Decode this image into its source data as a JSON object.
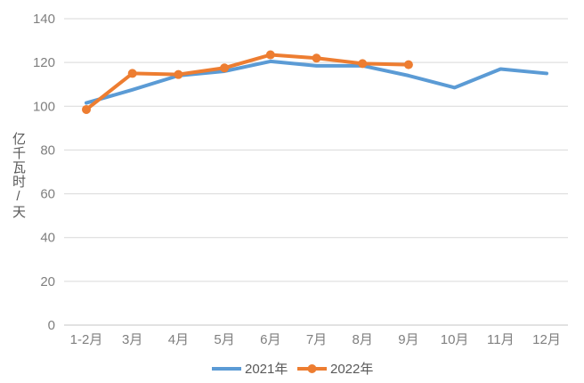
{
  "chart": {
    "background_color": "#ffffff",
    "tick_text_color": "#7f7f7f",
    "axis_title_color": "#595959",
    "legend_text_color": "#595959",
    "gridline_color": "#d9d9d9",
    "axis_line_color": "#c6c6c6"
  },
  "chart_data": {
    "type": "line",
    "title": "",
    "xlabel": "",
    "ylabel": "亿千瓦时/天",
    "categories": [
      "1-2月",
      "3月",
      "4月",
      "5月",
      "6月",
      "7月",
      "8月",
      "9月",
      "10月",
      "11月",
      "12月"
    ],
    "series": [
      {
        "name": "2021年",
        "color": "#5b9bd5",
        "marker": "none",
        "values": [
          101.5,
          107.5,
          114,
          116,
          120.5,
          118.5,
          118.5,
          114,
          108.5,
          117,
          115
        ]
      },
      {
        "name": "2022年",
        "color": "#ed7d31",
        "marker": "circle",
        "values": [
          98.5,
          115,
          114.5,
          117.5,
          123.5,
          122,
          119.5,
          119
        ]
      }
    ],
    "ylim": [
      0,
      140
    ],
    "ytick_step": 20,
    "ytick_labels": [
      "0",
      "20",
      "40",
      "60",
      "80",
      "100",
      "120",
      "140"
    ],
    "grid": "horizontal",
    "legend_position": "bottom",
    "legend_entries": [
      "2021年",
      "2022年"
    ]
  }
}
